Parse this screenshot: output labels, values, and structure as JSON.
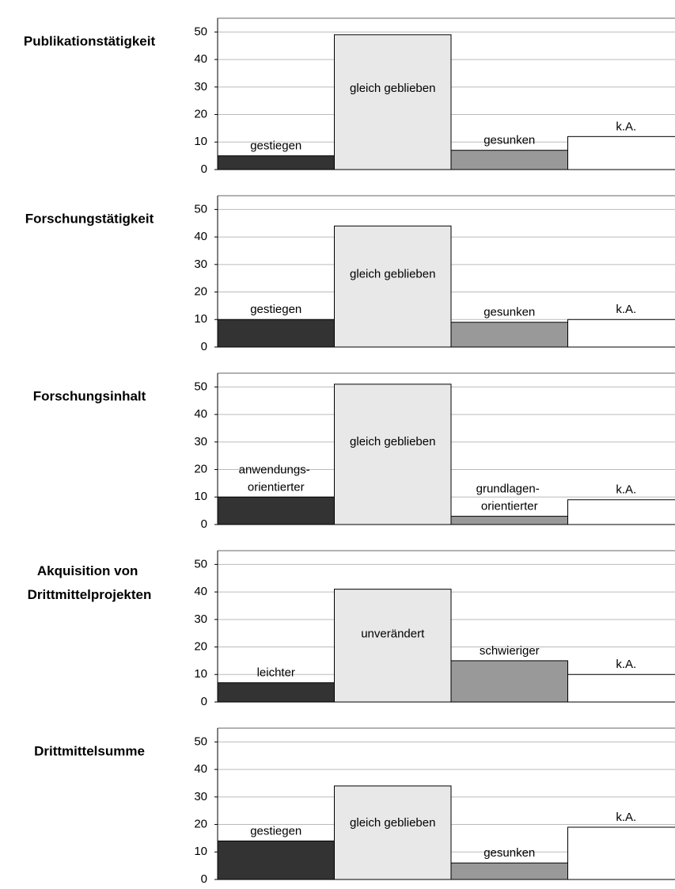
{
  "chart_data": [
    {
      "type": "bar",
      "title": "Publikationstätigkeit",
      "categories": [
        "gestiegen",
        "gleich geblieben",
        "gesunken",
        "k.A."
      ],
      "values": [
        5,
        49,
        7,
        12
      ],
      "colors": [
        "#333333",
        "#e8e8e8",
        "#999999",
        "#ffffff"
      ],
      "ylim": [
        0,
        55
      ],
      "yticks": [
        0,
        10,
        20,
        30,
        40,
        50
      ],
      "grid": true
    },
    {
      "type": "bar",
      "title": "Forschungstätigkeit",
      "categories": [
        "gestiegen",
        "gleich geblieben",
        "gesunken",
        "k.A."
      ],
      "values": [
        10,
        44,
        9,
        10
      ],
      "colors": [
        "#333333",
        "#e8e8e8",
        "#999999",
        "#ffffff"
      ],
      "ylim": [
        0,
        55
      ],
      "yticks": [
        0,
        10,
        20,
        30,
        40,
        50
      ],
      "grid": true
    },
    {
      "type": "bar",
      "title": "Forschungsinhalt",
      "categories": [
        "anwendungs-\norientierter",
        "gleich geblieben",
        "grundlagen-\norientierter",
        "k.A."
      ],
      "values": [
        10,
        51,
        3,
        9
      ],
      "colors": [
        "#333333",
        "#e8e8e8",
        "#999999",
        "#ffffff"
      ],
      "ylim": [
        0,
        55
      ],
      "yticks": [
        0,
        10,
        20,
        30,
        40,
        50
      ],
      "grid": true
    },
    {
      "type": "bar",
      "title": "Akquisition von\nDrittmittelprojekten",
      "categories": [
        "leichter",
        "unverändert",
        "schwieriger",
        "k.A."
      ],
      "values": [
        7,
        41,
        15,
        10
      ],
      "colors": [
        "#333333",
        "#e8e8e8",
        "#999999",
        "#ffffff"
      ],
      "ylim": [
        0,
        55
      ],
      "yticks": [
        0,
        10,
        20,
        30,
        40,
        50
      ],
      "grid": true
    },
    {
      "type": "bar",
      "title": "Drittmittelsumme",
      "categories": [
        "gestiegen",
        "gleich geblieben",
        "gesunken",
        "k.A."
      ],
      "values": [
        14,
        34,
        6,
        19
      ],
      "colors": [
        "#333333",
        "#e8e8e8",
        "#999999",
        "#ffffff"
      ],
      "ylim": [
        0,
        55
      ],
      "yticks": [
        0,
        10,
        20,
        30,
        40,
        50
      ],
      "grid": true
    }
  ]
}
